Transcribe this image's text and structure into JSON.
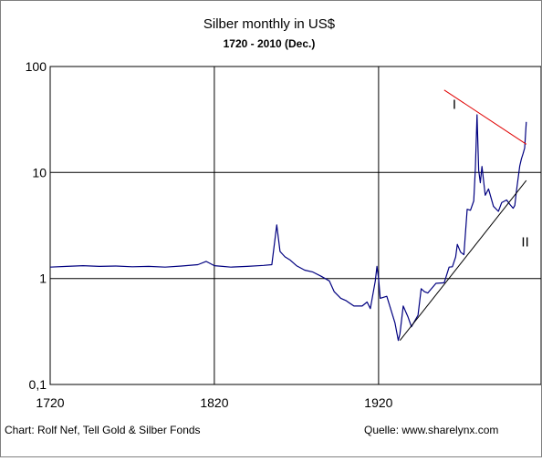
{
  "chart_data": {
    "type": "line",
    "title": "Silber monthly in US$",
    "subtitle": "1720   - 2010 (Dec.)",
    "xlabel": "",
    "ylabel": "",
    "y_scale": "log",
    "xlim": [
      1720,
      2010
    ],
    "ylim": [
      0.1,
      100
    ],
    "grid": true,
    "x_ticks": [
      1720,
      1820,
      1920
    ],
    "x_tick_labels": [
      "1720",
      "1820",
      "1920"
    ],
    "y_ticks": [
      0.1,
      1,
      10,
      100
    ],
    "y_tick_labels": [
      "0,1",
      "1",
      "10",
      "100"
    ],
    "series": [
      {
        "color": "#000080",
        "x": [
          1720,
          1730,
          1740,
          1750,
          1760,
          1770,
          1780,
          1790,
          1800,
          1810,
          1815,
          1820,
          1825,
          1830,
          1840,
          1850,
          1855,
          1858,
          1860,
          1863,
          1866,
          1870,
          1875,
          1880,
          1885,
          1890,
          1893,
          1897,
          1900,
          1905,
          1910,
          1913,
          1915,
          1918,
          1919,
          1920,
          1921,
          1925,
          1930,
          1932,
          1933,
          1935,
          1938,
          1940,
          1944,
          1946,
          1948,
          1950,
          1955,
          1960,
          1963,
          1965,
          1967,
          1968,
          1970,
          1972,
          1974,
          1976,
          1978,
          1979,
          1980,
          1981,
          1982,
          1983,
          1985,
          1987,
          1990,
          1993,
          1995,
          1998,
          2000,
          2002,
          2003,
          2004,
          2006,
          2007,
          2008,
          2009,
          2010
        ],
        "y": [
          1.28,
          1.3,
          1.32,
          1.3,
          1.31,
          1.29,
          1.3,
          1.28,
          1.31,
          1.35,
          1.45,
          1.32,
          1.3,
          1.28,
          1.3,
          1.33,
          1.35,
          3.2,
          1.8,
          1.6,
          1.5,
          1.32,
          1.2,
          1.15,
          1.05,
          0.95,
          0.75,
          0.65,
          0.62,
          0.55,
          0.55,
          0.6,
          0.52,
          0.95,
          1.3,
          1.0,
          0.65,
          0.68,
          0.38,
          0.26,
          0.3,
          0.55,
          0.43,
          0.35,
          0.45,
          0.8,
          0.75,
          0.73,
          0.9,
          0.91,
          1.28,
          1.29,
          1.6,
          2.1,
          1.77,
          1.68,
          4.5,
          4.4,
          5.4,
          11,
          35,
          10.5,
          8,
          11.4,
          6.1,
          7,
          4.8,
          4.3,
          5.2,
          5.5,
          5,
          4.6,
          4.9,
          6.7,
          11.5,
          13.4,
          15,
          17,
          30
        ]
      }
    ],
    "trendlines": [
      {
        "label": "I",
        "color": "#e00000",
        "x": [
          1960,
          2010
        ],
        "y": [
          60,
          18.5
        ]
      },
      {
        "label": "II",
        "color": "#000000",
        "x": [
          1933,
          2010
        ],
        "y": [
          0.26,
          8.4
        ]
      }
    ],
    "footer": {
      "left": "Chart: Rolf Nef, Tell Gold & Silber Fonds",
      "right": "Quelle: www.sharelynx.com"
    }
  }
}
